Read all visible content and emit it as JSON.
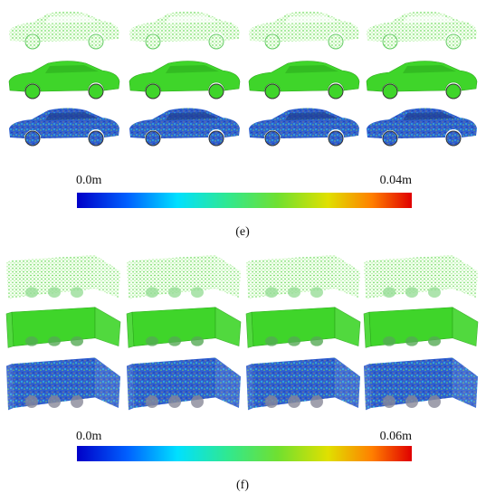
{
  "panels": [
    {
      "min_label": "0.0m",
      "max_label": "0.04m",
      "caption": "(e)"
    },
    {
      "min_label": "0.0m",
      "max_label": "0.06m",
      "caption": "(f)"
    }
  ]
}
